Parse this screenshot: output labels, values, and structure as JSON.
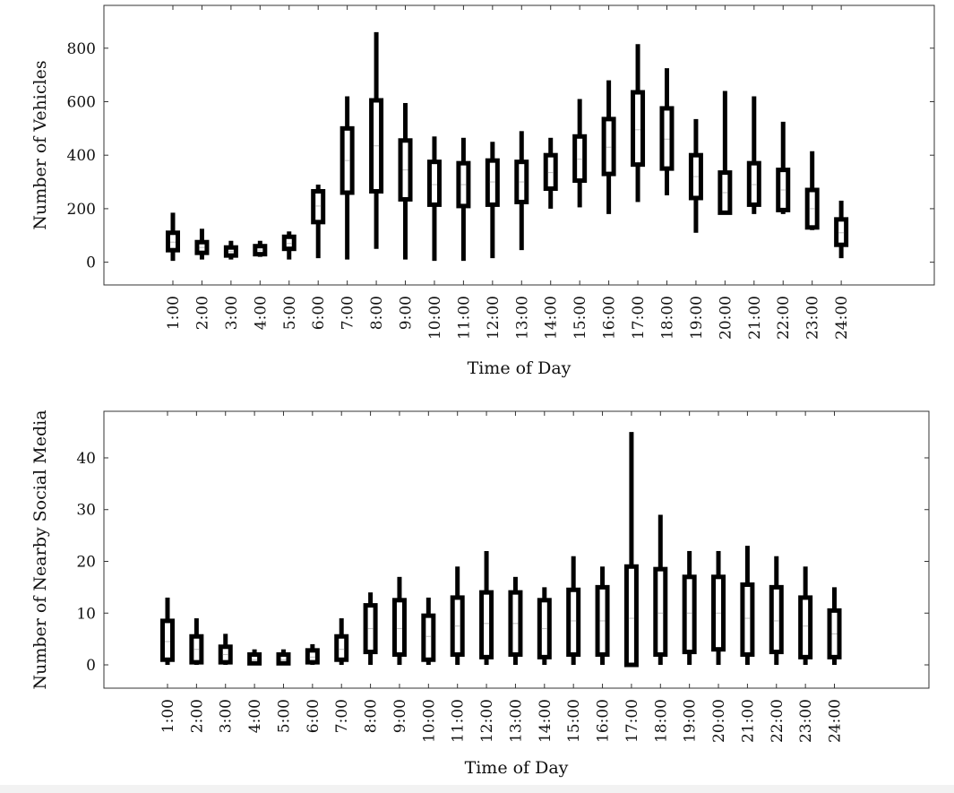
{
  "chart_data": [
    {
      "type": "box",
      "xlabel": "Time of Day",
      "ylabel": "Number of Vehicles",
      "ylim": [
        -85,
        960
      ],
      "yticks": [
        0,
        200,
        400,
        600,
        800
      ],
      "grid": false,
      "categories": [
        "1:00",
        "2:00",
        "3:00",
        "4:00",
        "5:00",
        "6:00",
        "7:00",
        "8:00",
        "9:00",
        "10:00",
        "11:00",
        "12:00",
        "13:00",
        "14:00",
        "15:00",
        "16:00",
        "17:00",
        "18:00",
        "19:00",
        "20:00",
        "21:00",
        "22:00",
        "23:00",
        "24:00"
      ],
      "boxes": [
        {
          "min": 5,
          "q1": 45,
          "median": 75,
          "q3": 110,
          "max": 185
        },
        {
          "min": 10,
          "q1": 35,
          "median": 55,
          "q3": 75,
          "max": 125
        },
        {
          "min": 10,
          "q1": 25,
          "median": 40,
          "q3": 55,
          "max": 80
        },
        {
          "min": 20,
          "q1": 30,
          "median": 45,
          "q3": 60,
          "max": 80
        },
        {
          "min": 10,
          "q1": 50,
          "median": 70,
          "q3": 95,
          "max": 115
        },
        {
          "min": 15,
          "q1": 150,
          "median": 210,
          "q3": 265,
          "max": 290
        },
        {
          "min": 10,
          "q1": 260,
          "median": 380,
          "q3": 500,
          "max": 620
        },
        {
          "min": 50,
          "q1": 265,
          "median": 435,
          "q3": 605,
          "max": 860
        },
        {
          "min": 10,
          "q1": 235,
          "median": 345,
          "q3": 455,
          "max": 595
        },
        {
          "min": 5,
          "q1": 215,
          "median": 290,
          "q3": 375,
          "max": 470
        },
        {
          "min": 5,
          "q1": 210,
          "median": 290,
          "q3": 370,
          "max": 465
        },
        {
          "min": 15,
          "q1": 215,
          "median": 300,
          "q3": 380,
          "max": 450
        },
        {
          "min": 45,
          "q1": 225,
          "median": 300,
          "q3": 375,
          "max": 490
        },
        {
          "min": 200,
          "q1": 275,
          "median": 335,
          "q3": 400,
          "max": 465
        },
        {
          "min": 205,
          "q1": 305,
          "median": 385,
          "q3": 470,
          "max": 610
        },
        {
          "min": 180,
          "q1": 330,
          "median": 430,
          "q3": 535,
          "max": 680
        },
        {
          "min": 225,
          "q1": 365,
          "median": 495,
          "q3": 635,
          "max": 815
        },
        {
          "min": 250,
          "q1": 350,
          "median": 460,
          "q3": 575,
          "max": 725
        },
        {
          "min": 110,
          "q1": 240,
          "median": 320,
          "q3": 400,
          "max": 535
        },
        {
          "min": 180,
          "q1": 185,
          "median": 260,
          "q3": 335,
          "max": 640
        },
        {
          "min": 180,
          "q1": 215,
          "median": 290,
          "q3": 370,
          "max": 620
        },
        {
          "min": 180,
          "q1": 195,
          "median": 270,
          "q3": 345,
          "max": 525
        },
        {
          "min": 120,
          "q1": 130,
          "median": 200,
          "q3": 270,
          "max": 415
        },
        {
          "min": 15,
          "q1": 65,
          "median": 110,
          "q3": 160,
          "max": 230
        }
      ]
    },
    {
      "type": "box",
      "xlabel": "Time of Day",
      "ylabel": "Number of Nearby Social Media",
      "ylim": [
        -4.5,
        49
      ],
      "yticks": [
        0,
        10,
        20,
        30,
        40
      ],
      "grid": false,
      "categories": [
        "1:00",
        "2:00",
        "3:00",
        "4:00",
        "5:00",
        "6:00",
        "7:00",
        "8:00",
        "9:00",
        "10:00",
        "11:00",
        "12:00",
        "13:00",
        "14:00",
        "15:00",
        "16:00",
        "17:00",
        "18:00",
        "19:00",
        "20:00",
        "21:00",
        "22:00",
        "23:00",
        "24:00"
      ],
      "boxes": [
        {
          "min": 0,
          "q1": 1,
          "median": 4.5,
          "q3": 8.5,
          "max": 13
        },
        {
          "min": 0,
          "q1": 0.5,
          "median": 3,
          "q3": 5.5,
          "max": 9
        },
        {
          "min": 0,
          "q1": 0.5,
          "median": 2,
          "q3": 3.5,
          "max": 6
        },
        {
          "min": 0,
          "q1": 0.3,
          "median": 1,
          "q3": 2,
          "max": 3
        },
        {
          "min": 0,
          "q1": 0.3,
          "median": 1,
          "q3": 2,
          "max": 3
        },
        {
          "min": 0,
          "q1": 0.5,
          "median": 1.5,
          "q3": 2.8,
          "max": 4
        },
        {
          "min": 0,
          "q1": 1,
          "median": 3,
          "q3": 5.5,
          "max": 9
        },
        {
          "min": 0,
          "q1": 2.5,
          "median": 7,
          "q3": 11.5,
          "max": 14
        },
        {
          "min": 0,
          "q1": 2,
          "median": 7,
          "q3": 12.5,
          "max": 17
        },
        {
          "min": 0,
          "q1": 1,
          "median": 5.5,
          "q3": 9.5,
          "max": 13
        },
        {
          "min": 0,
          "q1": 2,
          "median": 7.5,
          "q3": 13,
          "max": 19
        },
        {
          "min": 0,
          "q1": 1.5,
          "median": 8,
          "q3": 14,
          "max": 22
        },
        {
          "min": 0,
          "q1": 2,
          "median": 8,
          "q3": 14,
          "max": 17
        },
        {
          "min": 0,
          "q1": 1.5,
          "median": 7,
          "q3": 12.5,
          "max": 15
        },
        {
          "min": 0,
          "q1": 2,
          "median": 8.5,
          "q3": 14.5,
          "max": 21
        },
        {
          "min": 0,
          "q1": 2,
          "median": 8.5,
          "q3": 15,
          "max": 19
        },
        {
          "min": 0,
          "q1": 0,
          "median": 9,
          "q3": 19,
          "max": 45
        },
        {
          "min": 0,
          "q1": 2,
          "median": 10,
          "q3": 18.5,
          "max": 29
        },
        {
          "min": 0,
          "q1": 2.5,
          "median": 10,
          "q3": 17,
          "max": 22
        },
        {
          "min": 0,
          "q1": 3,
          "median": 10,
          "q3": 17,
          "max": 22
        },
        {
          "min": 0,
          "q1": 2,
          "median": 9,
          "q3": 15.5,
          "max": 23
        },
        {
          "min": 0,
          "q1": 2.5,
          "median": 8.5,
          "q3": 15,
          "max": 21
        },
        {
          "min": 0,
          "q1": 1.5,
          "median": 7.5,
          "q3": 13,
          "max": 19
        },
        {
          "min": 0,
          "q1": 1.5,
          "median": 6,
          "q3": 10.5,
          "max": 15
        }
      ]
    }
  ]
}
